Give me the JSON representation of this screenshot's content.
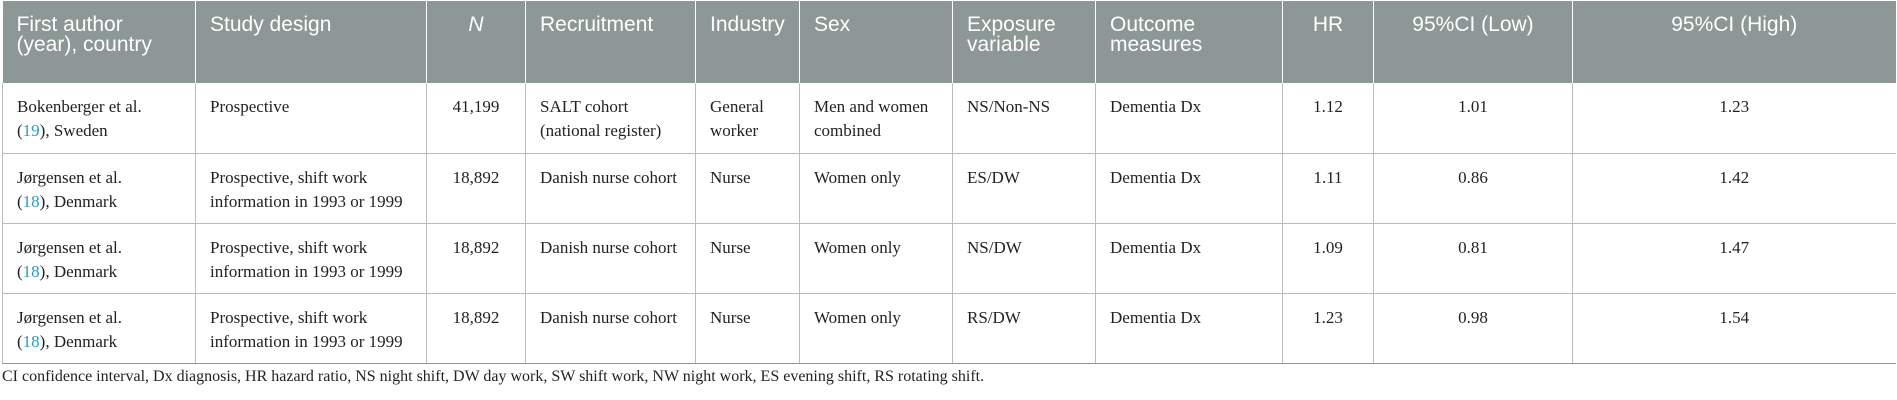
{
  "headers": [
    "First author (year), country",
    "Study design",
    "N",
    "Recruitment",
    "Industry",
    "Sex",
    "Exposure variable",
    "Outcome measures",
    "HR",
    "95%CI (Low)",
    "95%CI (High)"
  ],
  "rows": [
    {
      "author": "Bokenberger et al.",
      "ref": "19",
      "country": ", Sweden",
      "design": "Prospective",
      "n": "41,199",
      "recruitment": "SALT cohort (national register)",
      "industry": "General worker",
      "sex": "Men and women combined",
      "exposure": "NS/Non-NS",
      "outcome": "Dementia Dx",
      "hr": "1.12",
      "ci_low": "1.01",
      "ci_high": "1.23"
    },
    {
      "author": "Jørgensen et al.",
      "ref": "18",
      "country": ", Denmark",
      "design": "Prospective, shift work information in 1993 or 1999",
      "n": "18,892",
      "recruitment": "Danish nurse cohort",
      "industry": "Nurse",
      "sex": "Women only",
      "exposure": "ES/DW",
      "outcome": "Dementia Dx",
      "hr": "1.11",
      "ci_low": "0.86",
      "ci_high": "1.42"
    },
    {
      "author": "Jørgensen et al.",
      "ref": "18",
      "country": ", Denmark",
      "design": "Prospective, shift work information in 1993 or 1999",
      "n": "18,892",
      "recruitment": "Danish nurse cohort",
      "industry": "Nurse",
      "sex": "Women only",
      "exposure": "NS/DW",
      "outcome": "Dementia Dx",
      "hr": "1.09",
      "ci_low": "0.81",
      "ci_high": "1.47"
    },
    {
      "author": "Jørgensen et al.",
      "ref": "18",
      "country": ", Denmark",
      "design": "Prospective, shift work information in 1993 or 1999",
      "n": "18,892",
      "recruitment": "Danish nurse cohort",
      "industry": "Nurse",
      "sex": "Women only",
      "exposure": "RS/DW",
      "outcome": "Dementia Dx",
      "hr": "1.23",
      "ci_low": "0.98",
      "ci_high": "1.54"
    }
  ],
  "footnote": "CI confidence interval, Dx diagnosis, HR hazard ratio, NS night shift, DW day work, SW shift work, NW night work, ES evening shift, RS rotating shift.",
  "colors": {
    "header_bg": "#8d9795",
    "header_text": "#ffffff",
    "reference_link": "#2a9bbf",
    "grid_line": "#b9bebd"
  }
}
